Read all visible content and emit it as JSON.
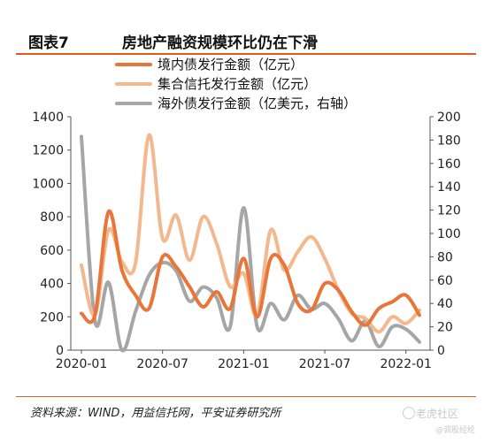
{
  "figure": {
    "number": "图表7",
    "title": "房地产融资规模环比仍在下滑"
  },
  "source": "资料来源：WIND，用益信托网，平安证券研究所",
  "watermark": {
    "line1": "老虎社区",
    "line2": "@调股经纶"
  },
  "colors": {
    "domestic": "#e8763a",
    "trust": "#f4b88f",
    "overseas": "#a6a6a6",
    "accent": "#e05a1a"
  },
  "chart_data": {
    "type": "line",
    "x": [
      "2020-01",
      "2020-02",
      "2020-03",
      "2020-04",
      "2020-05",
      "2020-06",
      "2020-07",
      "2020-08",
      "2020-09",
      "2020-10",
      "2020-11",
      "2020-12",
      "2021-01",
      "2021-02",
      "2021-03",
      "2021-04",
      "2021-05",
      "2021-06",
      "2021-07",
      "2021-08",
      "2021-09",
      "2021-10",
      "2021-11",
      "2021-12",
      "2022-01",
      "2022-02"
    ],
    "x_tick_labels": [
      "2020-01",
      "2020-07",
      "2021-01",
      "2021-07",
      "2022-01"
    ],
    "series": [
      {
        "name": "境内债发行金额（亿元）",
        "axis": "left",
        "color": "#e8763a",
        "values": [
          220,
          210,
          830,
          480,
          330,
          250,
          560,
          500,
          380,
          260,
          350,
          250,
          550,
          200,
          550,
          510,
          280,
          240,
          400,
          360,
          230,
          150,
          250,
          290,
          330,
          210
        ]
      },
      {
        "name": "集合信托发行金额（亿元）",
        "axis": "left",
        "color": "#f4b88f",
        "values": [
          510,
          210,
          720,
          530,
          520,
          1290,
          670,
          810,
          540,
          800,
          640,
          380,
          460,
          210,
          720,
          480,
          590,
          680,
          550,
          360,
          220,
          190,
          110,
          200,
          160,
          240
        ]
      },
      {
        "name": "海外债发行金额（亿美元，右轴）",
        "axis": "right",
        "color": "#a6a6a6",
        "values": [
          183,
          25,
          58,
          0,
          33,
          64,
          75,
          68,
          42,
          54,
          45,
          20,
          122,
          20,
          40,
          26,
          47,
          35,
          40,
          27,
          8,
          25,
          3,
          20,
          18,
          7
        ]
      }
    ],
    "yleft_lim": [
      0,
      1400
    ],
    "yleft_ticks": [
      0,
      200,
      400,
      600,
      800,
      1000,
      1200,
      1400
    ],
    "yright_lim": [
      0,
      200
    ],
    "yright_ticks": [
      0,
      20,
      40,
      60,
      80,
      100,
      120,
      140,
      160,
      180,
      200
    ],
    "grid": false,
    "legend": "top"
  }
}
